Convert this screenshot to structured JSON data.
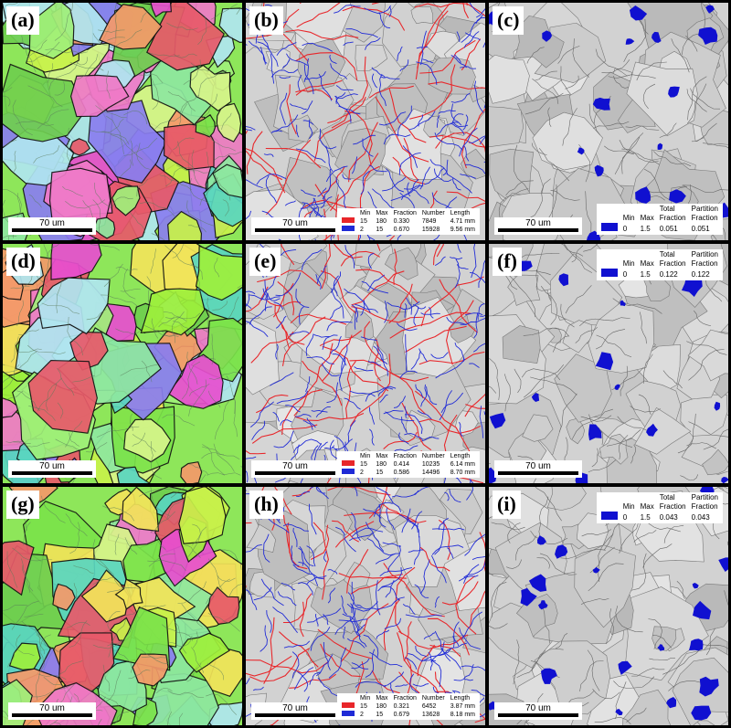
{
  "panels": {
    "a": {
      "label": "(a)",
      "scale": "70 um"
    },
    "b": {
      "label": "(b)",
      "scale": "70 um"
    },
    "c": {
      "label": "(c)",
      "scale": "70 um"
    },
    "d": {
      "label": "(d)",
      "scale": "70 um"
    },
    "e": {
      "label": "(e)",
      "scale": "70 um"
    },
    "f": {
      "label": "(f)",
      "scale": "70 um"
    },
    "g": {
      "label": "(g)",
      "scale": "70 um"
    },
    "h": {
      "label": "(h)",
      "scale": "70 um"
    },
    "i": {
      "label": "(i)",
      "scale": "70 um"
    }
  },
  "boundary_legend_headers": {
    "min": "Min",
    "max": "Max",
    "fraction": "Fraction",
    "number": "Number",
    "length": "Length"
  },
  "boundary_legends": {
    "b": [
      {
        "color": "#e8262a",
        "min": "15",
        "max": "180",
        "fraction": "0.330",
        "number": "7849",
        "length": "4.71 mm"
      },
      {
        "color": "#1f2ad6",
        "min": "2",
        "max": "15",
        "fraction": "0.670",
        "number": "15928",
        "length": "9.56 mm"
      }
    ],
    "e": [
      {
        "color": "#e8262a",
        "min": "15",
        "max": "180",
        "fraction": "0.414",
        "number": "10235",
        "length": "6.14 mm"
      },
      {
        "color": "#1f2ad6",
        "min": "2",
        "max": "15",
        "fraction": "0.586",
        "number": "14496",
        "length": "8.70 mm"
      }
    ],
    "h": [
      {
        "color": "#e8262a",
        "min": "15",
        "max": "180",
        "fraction": "0.321",
        "number": "6452",
        "length": "3.87 mm"
      },
      {
        "color": "#1f2ad6",
        "min": "2",
        "max": "15",
        "fraction": "0.679",
        "number": "13628",
        "length": "8.18 mm"
      }
    ]
  },
  "partition_legend_headers": {
    "min": "Min",
    "max": "Max",
    "total1": "Total",
    "total2": "Fraction",
    "part1": "Partition",
    "part2": "Fraction"
  },
  "partition_legends": {
    "c": {
      "color": "#1010d0",
      "min": "0",
      "max": "1.5",
      "total": "0.051",
      "partition": "0.051"
    },
    "f": {
      "color": "#1010d0",
      "min": "0",
      "max": "1.5",
      "total": "0.122",
      "partition": "0.122"
    },
    "i": {
      "color": "#1010d0",
      "min": "0",
      "max": "1.5",
      "total": "0.043",
      "partition": "0.043"
    }
  }
}
